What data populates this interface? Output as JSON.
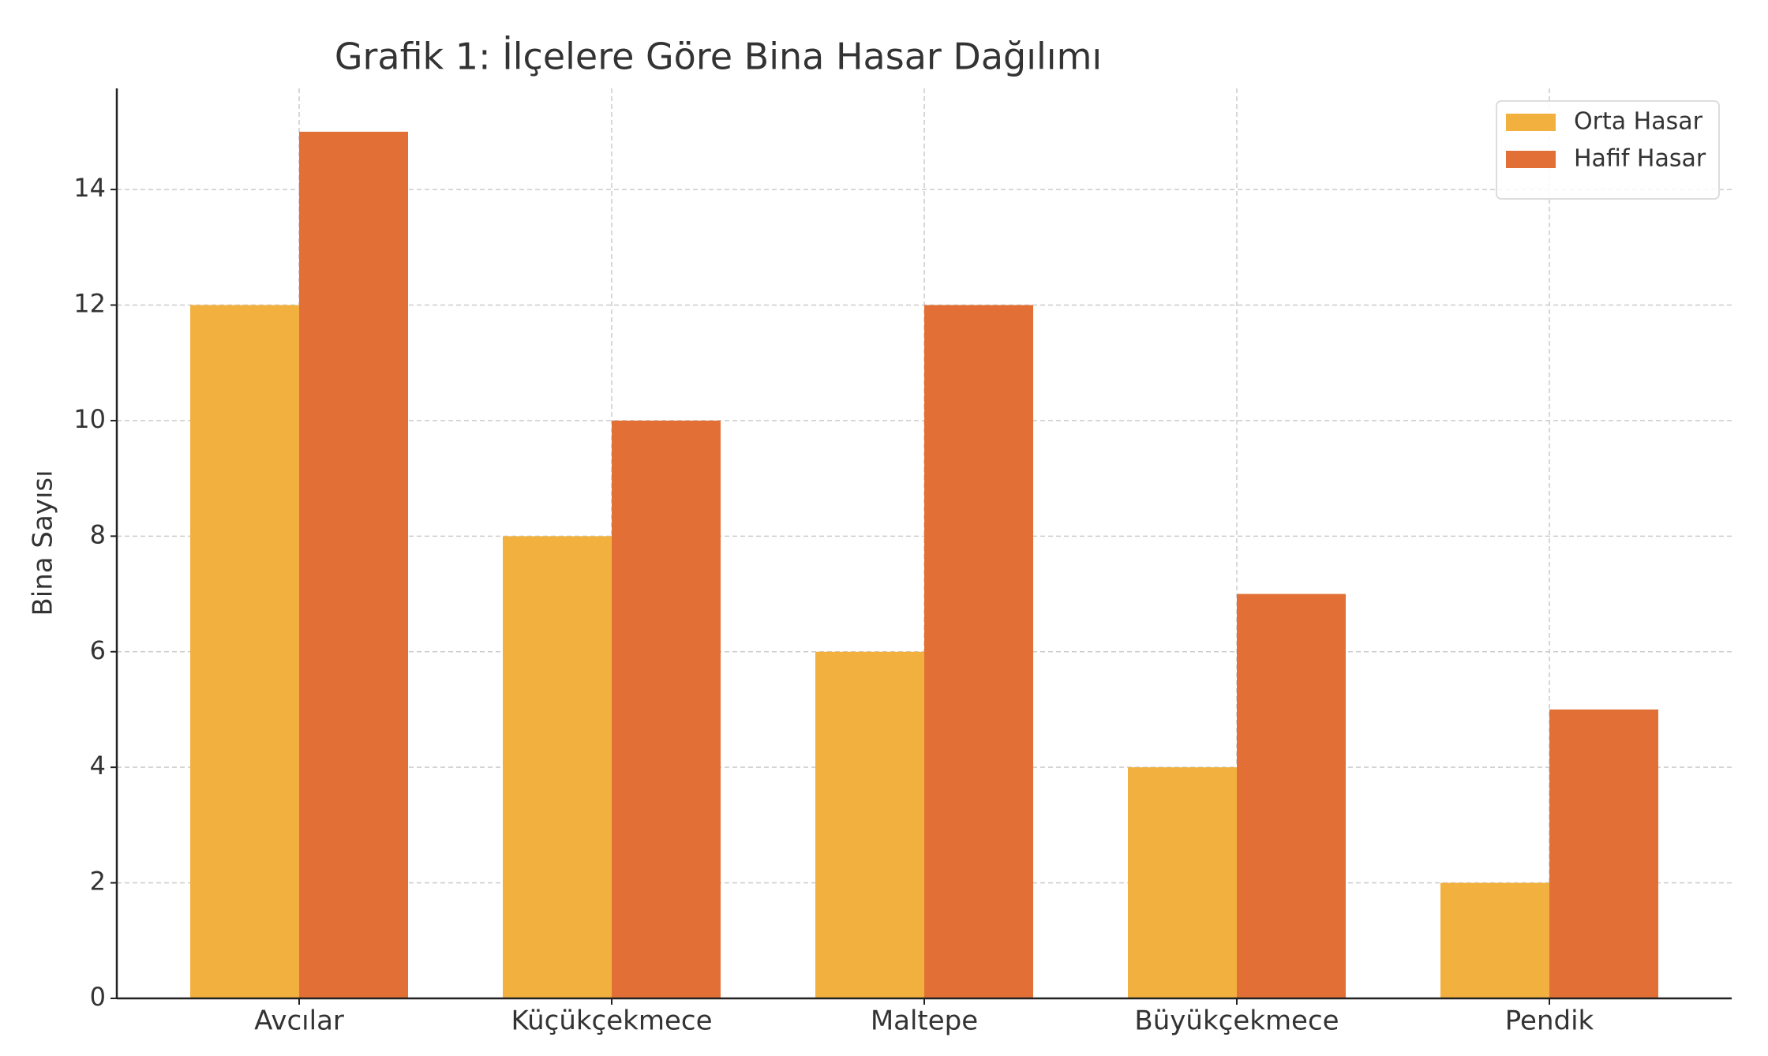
{
  "chart_data": {
    "type": "bar",
    "title": "Grafik 1: İlçelere Göre Bina Hasar Dağılımı",
    "y_label": "Bina Sayısı",
    "categories": [
      "Avcılar",
      "Küçükçekmece",
      "Maltepe",
      "Büyükçekmece",
      "Pendik"
    ],
    "series": [
      {
        "name": "Orta Hasar",
        "color": "#f2b13f",
        "values": [
          12,
          8,
          6,
          4,
          2
        ]
      },
      {
        "name": "Hafif Hasar",
        "color": "#e27036",
        "values": [
          15,
          10,
          12,
          7,
          5
        ]
      }
    ],
    "ylim": [
      0,
      15.75
    ],
    "yticks": [
      0,
      2,
      4,
      6,
      8,
      10,
      12,
      14
    ],
    "grid": true,
    "legend": "upper right"
  }
}
